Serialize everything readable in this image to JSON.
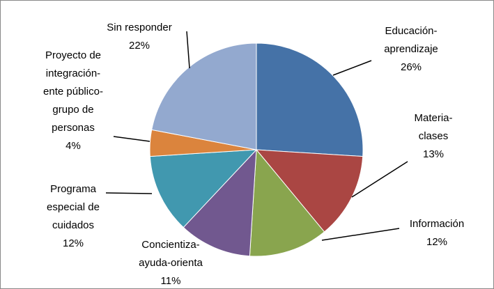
{
  "chart_data": {
    "type": "pie",
    "categories": [
      "Educación-\naprendizaje",
      "Materia-\nclases",
      "Información",
      "Concientiza-\nayuda-orienta",
      "Programa\nespecial de\ncuidados",
      "Proyecto de\nintegración-\nente público-\ngrupo de\npersonas",
      "Sin responder"
    ],
    "values": [
      26,
      13,
      12,
      11,
      12,
      4,
      22
    ],
    "value_labels": [
      "26%",
      "13%",
      "12%",
      "11%",
      "12%",
      "4%",
      "22%"
    ],
    "colors": [
      "#4572a7",
      "#aa4643",
      "#89a54e",
      "#71588f",
      "#4198af",
      "#db843d",
      "#93a9cf"
    ]
  }
}
